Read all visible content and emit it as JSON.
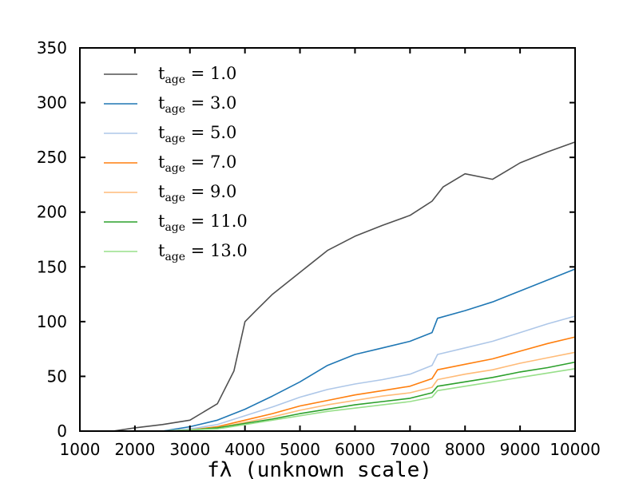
{
  "chart_data": {
    "type": "line",
    "title": "",
    "xlabel": "fλ (unknown scale)",
    "ylabel": "",
    "xlim": [
      1000,
      10000
    ],
    "ylim": [
      0,
      350
    ],
    "x_ticks": [
      1000,
      2000,
      3000,
      4000,
      5000,
      6000,
      7000,
      8000,
      9000,
      10000
    ],
    "y_ticks": [
      0,
      50,
      100,
      150,
      200,
      250,
      300,
      350
    ],
    "grid": false,
    "legend_position": "top-left",
    "legend_prefix": "t",
    "legend_subscript": "age",
    "series": [
      {
        "name": "t_age = 1.0",
        "legend_value": "= 1.0",
        "color": "#505050",
        "x": [
          1600,
          2000,
          2500,
          3000,
          3500,
          3800,
          4000,
          4200,
          4500,
          5000,
          5500,
          6000,
          6500,
          7000,
          7400,
          7600,
          8000,
          8500,
          9000,
          9500,
          10000
        ],
        "y": [
          0,
          3,
          6,
          10,
          25,
          55,
          100,
          110,
          125,
          145,
          165,
          178,
          188,
          197,
          210,
          223,
          235,
          230,
          245,
          255,
          264
        ]
      },
      {
        "name": "t_age = 3.0",
        "legend_value": "= 3.0",
        "color": "#1f77b4",
        "x": [
          2500,
          3000,
          3500,
          4000,
          4500,
          5000,
          5500,
          6000,
          6500,
          7000,
          7400,
          7500,
          8000,
          8500,
          9000,
          9500,
          10000
        ],
        "y": [
          0,
          4,
          10,
          20,
          32,
          45,
          60,
          70,
          76,
          82,
          90,
          103,
          110,
          118,
          128,
          138,
          148
        ]
      },
      {
        "name": "t_age = 5.0",
        "legend_value": "= 5.0",
        "color": "#aec7e8",
        "x": [
          2500,
          3000,
          3500,
          4000,
          4500,
          5000,
          5500,
          6000,
          6500,
          7000,
          7400,
          7500,
          8000,
          8500,
          9000,
          9500,
          10000
        ],
        "y": [
          0,
          2,
          6,
          14,
          22,
          31,
          38,
          43,
          47,
          52,
          60,
          70,
          76,
          82,
          90,
          98,
          105
        ]
      },
      {
        "name": "t_age = 7.0",
        "legend_value": "= 7.0",
        "color": "#ff7f0e",
        "x": [
          2500,
          3000,
          3500,
          4000,
          4500,
          5000,
          5500,
          6000,
          6500,
          7000,
          7400,
          7500,
          8000,
          8500,
          9000,
          9500,
          10000
        ],
        "y": [
          0,
          1,
          4,
          10,
          16,
          23,
          28,
          33,
          37,
          41,
          48,
          56,
          61,
          66,
          73,
          80,
          86
        ]
      },
      {
        "name": "t_age = 9.0",
        "legend_value": "= 9.0",
        "color": "#ffbb78",
        "x": [
          2500,
          3000,
          3500,
          4000,
          4500,
          5000,
          5500,
          6000,
          6500,
          7000,
          7400,
          7500,
          8000,
          8500,
          9000,
          9500,
          10000
        ],
        "y": [
          0,
          1,
          3,
          8,
          13,
          19,
          24,
          28,
          32,
          35,
          40,
          47,
          52,
          56,
          62,
          67,
          72
        ]
      },
      {
        "name": "t_age = 11.0",
        "legend_value": "= 11.0",
        "color": "#2ca02c",
        "x": [
          2500,
          3000,
          3500,
          4000,
          4500,
          5000,
          5500,
          6000,
          6500,
          7000,
          7400,
          7500,
          8000,
          8500,
          9000,
          9500,
          10000
        ],
        "y": [
          0,
          1,
          3,
          7,
          11,
          16,
          20,
          24,
          27,
          30,
          35,
          41,
          45,
          49,
          54,
          58,
          63
        ]
      },
      {
        "name": "t_age = 13.0",
        "legend_value": "= 13.0",
        "color": "#98df8a",
        "x": [
          2500,
          3000,
          3500,
          4000,
          4500,
          5000,
          5500,
          6000,
          6500,
          7000,
          7400,
          7500,
          8000,
          8500,
          9000,
          9500,
          10000
        ],
        "y": [
          0,
          1,
          2,
          6,
          10,
          14,
          18,
          21,
          24,
          27,
          31,
          37,
          41,
          45,
          49,
          53,
          57
        ]
      }
    ]
  }
}
